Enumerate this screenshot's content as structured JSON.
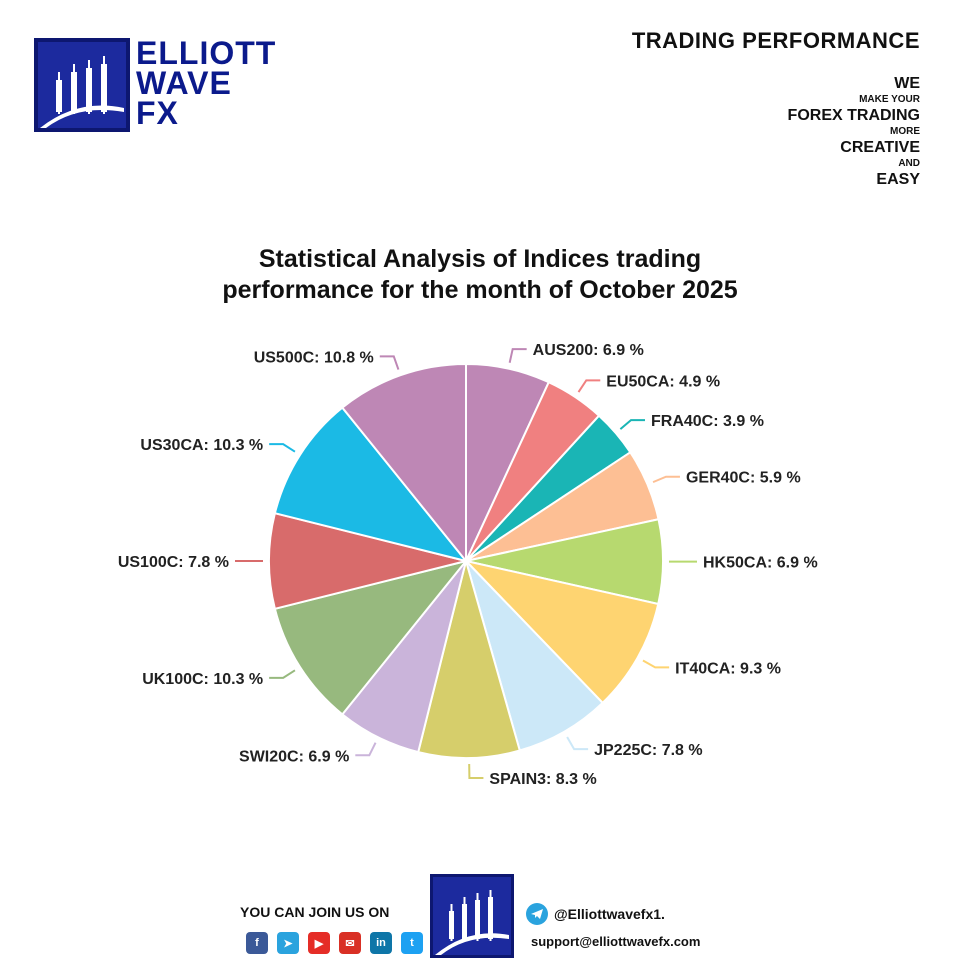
{
  "brand": {
    "logo_words": [
      "ELLIOTT",
      "WAVE",
      "FX"
    ]
  },
  "header": {
    "title": "TRADING PERFORMANCE",
    "tagline": [
      {
        "text": "WE",
        "size": "big"
      },
      {
        "text": "MAKE YOUR",
        "size": "small"
      },
      {
        "text": "FOREX TRADING",
        "size": "big"
      },
      {
        "text": "MORE",
        "size": "small"
      },
      {
        "text": "CREATIVE",
        "size": "big"
      },
      {
        "text": "AND",
        "size": "small"
      },
      {
        "text": "EASY",
        "size": "big"
      }
    ]
  },
  "chart_data": {
    "type": "pie",
    "title": "Statistical Analysis  of Indices trading performance for the month of October 2025",
    "title_lines": [
      "Statistical Analysis  of Indices trading",
      "performance for the month of October 2025"
    ],
    "unit": "%",
    "slices": [
      {
        "label": "AUS200",
        "value": 6.9,
        "color": "#be87b5"
      },
      {
        "label": "EU50CA",
        "value": 4.9,
        "color": "#f08080"
      },
      {
        "label": "FRA40C",
        "value": 3.9,
        "color": "#1ab5b5"
      },
      {
        "label": "GER40C",
        "value": 5.9,
        "color": "#fdbf94"
      },
      {
        "label": "HK50CA",
        "value": 6.9,
        "color": "#b7d96f"
      },
      {
        "label": "IT40CA",
        "value": 9.3,
        "color": "#fed471"
      },
      {
        "label": "JP225C",
        "value": 7.8,
        "color": "#cce8f8"
      },
      {
        "label": "SPAIN3",
        "value": 8.3,
        "color": "#d6ce6b"
      },
      {
        "label": "SWI20C",
        "value": 6.9,
        "color": "#cab4da"
      },
      {
        "label": "UK100C",
        "value": 10.3,
        "color": "#97b97e"
      },
      {
        "label": "US100C",
        "value": 7.8,
        "color": "#d86b6b"
      },
      {
        "label": "US30CA",
        "value": 10.3,
        "color": "#1bbae5"
      },
      {
        "label": "US500C",
        "value": 10.8,
        "color": "#be87b5"
      }
    ],
    "start": "12 o'clock",
    "direction": "clockwise"
  },
  "footer": {
    "join_text": "YOU CAN JOIN US ON",
    "social": [
      {
        "name": "facebook-icon",
        "glyph": "f",
        "color": "#3b5998"
      },
      {
        "name": "telegram-icon",
        "glyph": "➤",
        "color": "#2aa3de"
      },
      {
        "name": "youtube-icon",
        "glyph": "▶",
        "color": "#e52d27"
      },
      {
        "name": "mail-icon",
        "glyph": "✉",
        "color": "#d93025"
      },
      {
        "name": "linkedin-icon",
        "glyph": "in",
        "color": "#0e76a8"
      },
      {
        "name": "twitter-icon",
        "glyph": "t",
        "color": "#1da1f2"
      }
    ],
    "telegram_handle": "@Elliottwavefx1.",
    "email": "support@elliottwavefx.com"
  }
}
